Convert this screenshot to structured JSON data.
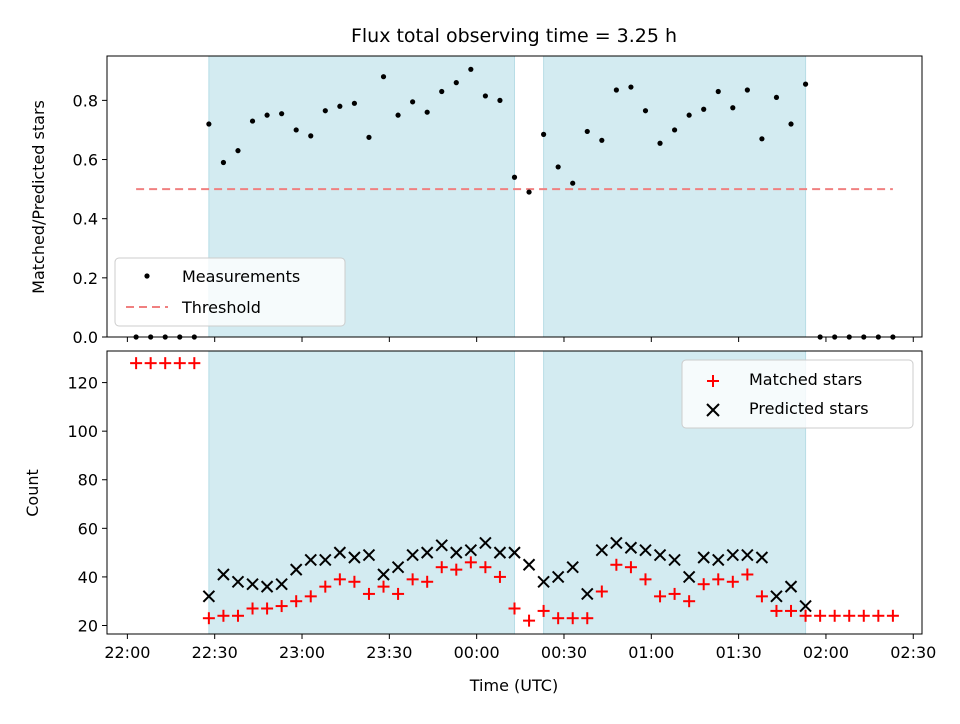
{
  "chart_data": {
    "type": "scatter",
    "title": "Flux total observing time = 3.25 h",
    "xlabel": "Time (UTC)",
    "x_unit": "time (UTC)",
    "xlim": [
      "21:53",
      "02:33"
    ],
    "xticks": [
      "22:00",
      "22:30",
      "23:00",
      "23:30",
      "00:00",
      "00:30",
      "01:00",
      "01:30",
      "02:00",
      "02:30"
    ],
    "shaded_intervals": [
      [
        "22:28",
        "00:13"
      ],
      [
        "00:23",
        "01:53"
      ]
    ],
    "shade_color": "#d3ebf1",
    "top": {
      "ylabel": "Matched/Predicted stars",
      "ylim": [
        0,
        0.95
      ],
      "yticks": [
        0.0,
        0.2,
        0.4,
        0.6,
        0.8
      ],
      "legend_position": "lower-left",
      "series": [
        {
          "name": "Measurements",
          "marker": "dot",
          "color": "#000000",
          "x": [
            "22:03",
            "22:08",
            "22:13",
            "22:18",
            "22:23",
            "22:28",
            "22:33",
            "22:38",
            "22:43",
            "22:48",
            "22:53",
            "22:58",
            "23:03",
            "23:08",
            "23:13",
            "23:18",
            "23:23",
            "23:28",
            "23:33",
            "23:38",
            "23:43",
            "23:48",
            "23:53",
            "23:58",
            "00:03",
            "00:08",
            "00:13",
            "00:18",
            "00:23",
            "00:28",
            "00:33",
            "00:38",
            "00:43",
            "00:48",
            "00:53",
            "00:58",
            "01:03",
            "01:08",
            "01:13",
            "01:18",
            "01:23",
            "01:28",
            "01:33",
            "01:38",
            "01:43",
            "01:48",
            "01:53",
            "01:58",
            "02:03",
            "02:08",
            "02:13",
            "02:18",
            "02:23"
          ],
          "values": [
            0,
            0,
            0,
            0,
            0,
            0.72,
            0.59,
            0.63,
            0.73,
            0.75,
            0.755,
            0.7,
            0.68,
            0.765,
            0.78,
            0.79,
            0.675,
            0.88,
            0.75,
            0.795,
            0.76,
            0.83,
            0.86,
            0.905,
            0.815,
            0.8,
            0.54,
            0.49,
            0.685,
            0.575,
            0.52,
            0.695,
            0.665,
            0.835,
            0.845,
            0.765,
            0.655,
            0.7,
            0.75,
            0.77,
            0.83,
            0.775,
            0.835,
            0.67,
            0.81,
            0.72,
            0.855,
            0,
            0,
            0,
            0,
            0,
            0
          ]
        },
        {
          "name": "Threshold",
          "style": "dashed",
          "color": "#f08080",
          "x": [
            "22:03",
            "02:23"
          ],
          "values": [
            0.5,
            0.5
          ]
        }
      ]
    },
    "bottom": {
      "ylabel": "Count",
      "ylim": [
        16.5,
        133
      ],
      "yticks": [
        20,
        40,
        60,
        80,
        100,
        120
      ],
      "legend_position": "upper-right",
      "series": [
        {
          "name": "Matched stars",
          "marker": "plus",
          "color": "#ff0000",
          "x": [
            "22:03",
            "22:08",
            "22:13",
            "22:18",
            "22:23",
            "22:28",
            "22:33",
            "22:38",
            "22:43",
            "22:48",
            "22:53",
            "22:58",
            "23:03",
            "23:08",
            "23:13",
            "23:18",
            "23:23",
            "23:28",
            "23:33",
            "23:38",
            "23:43",
            "23:48",
            "23:53",
            "23:58",
            "00:03",
            "00:08",
            "00:13",
            "00:18",
            "00:23",
            "00:28",
            "00:33",
            "00:38",
            "00:43",
            "00:48",
            "00:53",
            "00:58",
            "01:03",
            "01:08",
            "01:13",
            "01:18",
            "01:23",
            "01:28",
            "01:33",
            "01:38",
            "01:43",
            "01:48",
            "01:53",
            "01:58",
            "02:03",
            "02:08",
            "02:13",
            "02:18",
            "02:23"
          ],
          "values": [
            128,
            128,
            128,
            128,
            128,
            23,
            24,
            24,
            27,
            27,
            28,
            30,
            32,
            36,
            39,
            38,
            33,
            36,
            33,
            39,
            38,
            44,
            43,
            46,
            44,
            40,
            27,
            22,
            26,
            23,
            23,
            23,
            34,
            45,
            44,
            39,
            32,
            33,
            30,
            37,
            39,
            38,
            41,
            32,
            26,
            26,
            24,
            24,
            24,
            24,
            24,
            24,
            24
          ]
        },
        {
          "name": "Predicted stars",
          "marker": "x",
          "color": "#000000",
          "x": [
            "22:28",
            "22:33",
            "22:38",
            "22:43",
            "22:48",
            "22:53",
            "22:58",
            "23:03",
            "23:08",
            "23:13",
            "23:18",
            "23:23",
            "23:28",
            "23:33",
            "23:38",
            "23:43",
            "23:48",
            "23:53",
            "23:58",
            "00:03",
            "00:08",
            "00:13",
            "00:18",
            "00:23",
            "00:28",
            "00:33",
            "00:38",
            "00:43",
            "00:48",
            "00:53",
            "00:58",
            "01:03",
            "01:08",
            "01:13",
            "01:18",
            "01:23",
            "01:28",
            "01:33",
            "01:38",
            "01:43",
            "01:48",
            "01:53"
          ],
          "values": [
            32,
            41,
            38,
            37,
            36,
            37,
            43,
            47,
            47,
            50,
            48,
            49,
            41,
            44,
            49,
            50,
            53,
            50,
            51,
            54,
            50,
            50,
            45,
            38,
            40,
            44,
            33,
            51,
            54,
            52,
            51,
            49,
            47,
            40,
            48,
            47,
            49,
            49,
            48,
            32,
            36,
            28
          ]
        }
      ]
    }
  }
}
